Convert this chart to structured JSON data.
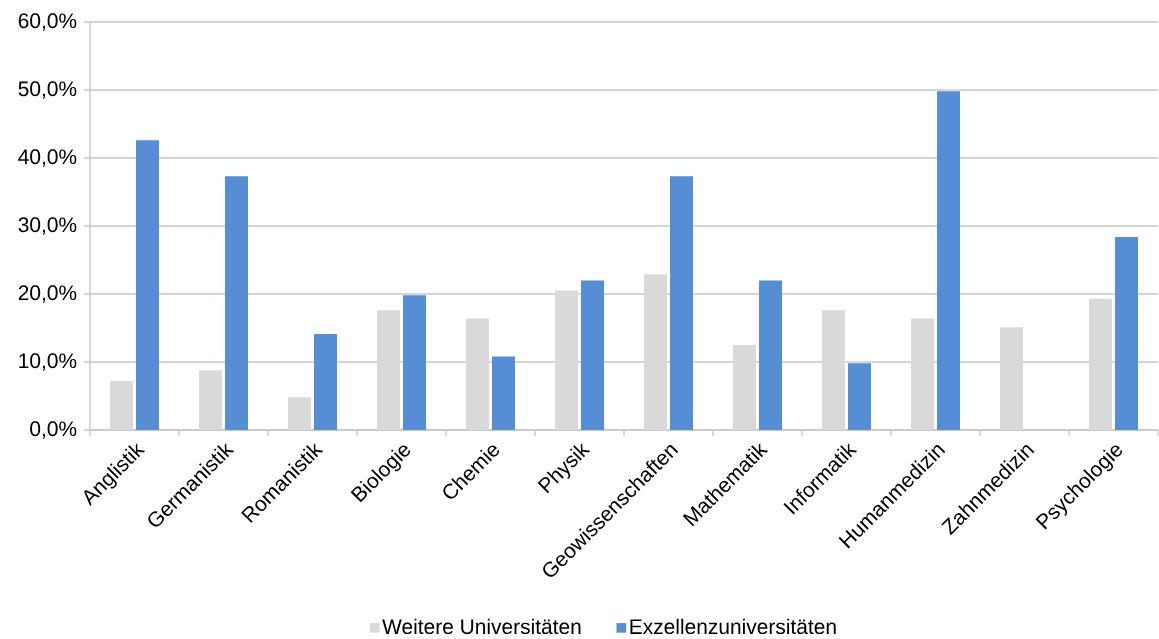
{
  "chart_data": {
    "type": "bar",
    "categories": [
      "Anglistik",
      "Germanistik",
      "Romanistik",
      "Biologie",
      "Chemie",
      "Physik",
      "Geowissenschaften",
      "Mathematik",
      "Informatik",
      "Humanmedizin",
      "Zahnmedizin",
      "Psychologie"
    ],
    "series": [
      {
        "name": "Weitere Universitäten",
        "color": "#d9d9d9",
        "values": [
          7.2,
          8.8,
          4.8,
          17.6,
          16.4,
          20.5,
          22.9,
          12.5,
          17.6,
          16.4,
          15.1,
          19.3
        ]
      },
      {
        "name": "Exzellenzuniversitäten",
        "color": "#558ed5",
        "values": [
          42.6,
          37.3,
          14.1,
          19.8,
          10.8,
          22.0,
          37.3,
          22.0,
          9.8,
          49.8,
          null,
          28.4
        ]
      }
    ],
    "ylim": [
      0,
      60
    ],
    "yticks": [
      {
        "value": 0,
        "label": "0,0%"
      },
      {
        "value": 10,
        "label": "10,0%"
      },
      {
        "value": 20,
        "label": "20,0%"
      },
      {
        "value": 30,
        "label": "30,0%"
      },
      {
        "value": 40,
        "label": "40,0%"
      },
      {
        "value": 50,
        "label": "50,0%"
      },
      {
        "value": 60,
        "label": "60,0%"
      }
    ],
    "grid": "y",
    "legend": "bottom"
  }
}
